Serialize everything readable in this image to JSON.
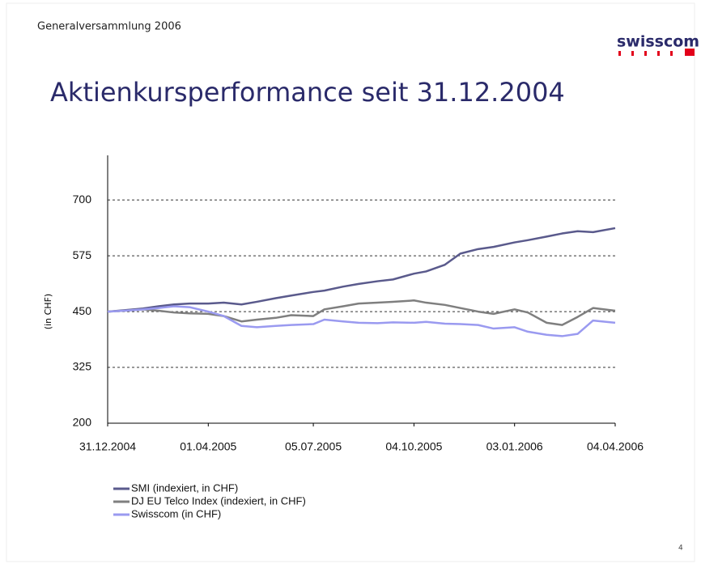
{
  "header": "Generalversammlung 2006",
  "logo": "swisscom",
  "page_number": "4",
  "chart_data": {
    "type": "line",
    "title": "Aktienkursperformance seit 31.12.2004",
    "y_label": "(in CHF)",
    "x": [
      "31.12.2004",
      "15.01.2005",
      "01.02.2005",
      "15.02.2005",
      "01.03.2005",
      "15.03.2005",
      "01.04.2005",
      "15.04.2005",
      "01.05.2005",
      "15.05.2005",
      "01.06.2005",
      "15.06.2005",
      "05.07.2005",
      "15.07.2005",
      "01.08.2005",
      "15.08.2005",
      "01.09.2005",
      "15.09.2005",
      "04.10.2005",
      "15.10.2005",
      "01.11.2005",
      "15.11.2005",
      "01.12.2005",
      "15.12.2005",
      "03.01.2006",
      "15.01.2006",
      "01.02.2006",
      "15.02.2006",
      "01.03.2006",
      "15.03.2006",
      "04.04.2006"
    ],
    "series": [
      {
        "name": "SMI (indexiert, in CHF)",
        "color": "#5a5a8c",
        "values": [
          450,
          453,
          457,
          462,
          466,
          468,
          468,
          470,
          466,
          472,
          480,
          486,
          494,
          497,
          506,
          512,
          518,
          522,
          535,
          540,
          555,
          580,
          590,
          595,
          605,
          610,
          618,
          625,
          630,
          628,
          637
        ]
      },
      {
        "name": "DJ EU Telco Index (indexiert, in CHF)",
        "color": "#7f7f7f",
        "values": [
          450,
          452,
          455,
          452,
          448,
          446,
          445,
          440,
          428,
          432,
          436,
          442,
          440,
          455,
          462,
          468,
          470,
          472,
          475,
          470,
          465,
          458,
          450,
          445,
          455,
          448,
          425,
          420,
          438,
          458,
          452
        ]
      },
      {
        "name": "Swisscom (in CHF)",
        "color": "#9a9af0",
        "values": [
          450,
          452,
          455,
          458,
          462,
          460,
          450,
          440,
          418,
          415,
          418,
          420,
          422,
          432,
          428,
          425,
          424,
          426,
          425,
          427,
          423,
          422,
          420,
          412,
          415,
          405,
          398,
          395,
          400,
          430,
          425
        ]
      }
    ],
    "xlim": [
      "31.12.2004",
      "04.04.2006"
    ],
    "xticks": [
      "31.12.2004",
      "01.04.2005",
      "05.07.2005",
      "04.10.2005",
      "03.01.2006",
      "04.04.2006"
    ],
    "ylim": [
      200,
      800
    ],
    "yticks": [
      200,
      325,
      450,
      575,
      700
    ],
    "grid": true,
    "legend": "bottom-left"
  }
}
